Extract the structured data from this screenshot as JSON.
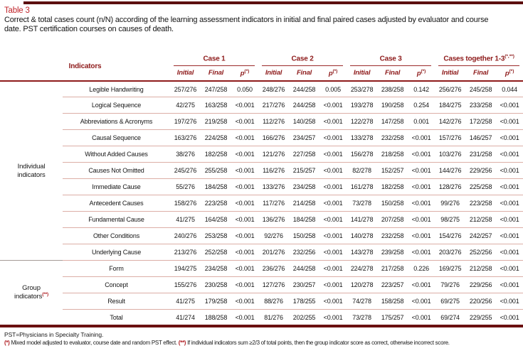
{
  "title": "Table 3",
  "subtitle": "Correct & total cases count (n/N) according of the learning assessment indicators in initial and final paired cases adjusted by evaluator and course date. PST certification courses on causes of death.",
  "colors": {
    "title_red": "#c0242a",
    "header_maroon": "#8e1b1b",
    "rule_dark_maroon": "#6b1010",
    "row_separator_pink": "#dcaea6",
    "group_boundary_gray": "#a59a96",
    "footnote_marker_red": "#b01e23"
  },
  "header": {
    "indicators_label": "Indicators",
    "groups": [
      {
        "label": "Case 1",
        "sup": ""
      },
      {
        "label": "Case 2",
        "sup": ""
      },
      {
        "label": "Case 3",
        "sup": ""
      },
      {
        "label": "Cases together 1-3",
        "sup": "(*,**)"
      }
    ],
    "subcols": [
      "Initial",
      "Final"
    ],
    "p_label": "p",
    "p_sup": "(*)"
  },
  "row_groups": [
    {
      "label": "Individual indicators",
      "sup": "",
      "rows": [
        {
          "name": "Legible Handwriting",
          "values": [
            "257/276",
            "247/258",
            "0.050",
            "248/276",
            "244/258",
            "0.005",
            "253/278",
            "238/258",
            "0.142",
            "256/276",
            "245/258",
            "0.044"
          ]
        },
        {
          "name": "Logical Sequence",
          "values": [
            "42/275",
            "163/258",
            "<0.001",
            "217/276",
            "244/258",
            "<0.001",
            "193/278",
            "190/258",
            "0.254",
            "184/275",
            "233/258",
            "<0.001"
          ]
        },
        {
          "name": "Abbreviations & Acronyms",
          "values": [
            "197/276",
            "219/258",
            "<0.001",
            "112/276",
            "140/258",
            "<0.001",
            "122/278",
            "147/258",
            "0.001",
            "142/276",
            "172/258",
            "<0.001"
          ]
        },
        {
          "name": "Causal Sequence",
          "values": [
            "163/276",
            "224/258",
            "<0.001",
            "166/276",
            "234/257",
            "<0.001",
            "133/278",
            "232/258",
            "<0.001",
            "157/276",
            "146/257",
            "<0.001"
          ]
        },
        {
          "name": "Without Added Causes",
          "values": [
            "38/276",
            "182/258",
            "<0.001",
            "121/276",
            "227/258",
            "<0.001",
            "156/278",
            "218/258",
            "<0.001",
            "103/276",
            "231/258",
            "<0.001"
          ]
        },
        {
          "name": "Causes Not Omitted",
          "values": [
            "245/276",
            "255/258",
            "<0.001",
            "116/276",
            "215/257",
            "<0.001",
            "82/278",
            "152/257",
            "<0.001",
            "144/276",
            "229/256",
            "<0.001"
          ]
        },
        {
          "name": "Immediate Cause",
          "values": [
            "55/276",
            "184/258",
            "<0.001",
            "133/276",
            "234/258",
            "<0.001",
            "161/278",
            "182/258",
            "<0.001",
            "128/276",
            "225/258",
            "<0.001"
          ]
        },
        {
          "name": "Antecedent Causes",
          "values": [
            "158/276",
            "223/258",
            "<0.001",
            "117/276",
            "214/258",
            "<0.001",
            "73/278",
            "150/258",
            "<0.001",
            "99/276",
            "223/258",
            "<0.001"
          ]
        },
        {
          "name": "Fundamental Cause",
          "values": [
            "41/275",
            "164/258",
            "<0.001",
            "136/276",
            "184/258",
            "<0.001",
            "141/278",
            "207/258",
            "<0.001",
            "98/275",
            "212/258",
            "<0.001"
          ]
        },
        {
          "name": "Other Conditions",
          "values": [
            "240/276",
            "253/258",
            "<0.001",
            "92/276",
            "150/258",
            "<0.001",
            "140/278",
            "232/258",
            "<0.001",
            "154/276",
            "242/257",
            "<0.001"
          ]
        },
        {
          "name": "Underlying Cause",
          "values": [
            "213/276",
            "252/258",
            "<0.001",
            "201/276",
            "232/256",
            "<0.001",
            "143/278",
            "239/258",
            "<0.001",
            "203/276",
            "252/256",
            "<0.001"
          ]
        }
      ]
    },
    {
      "label": "Group indicators",
      "sup": "(**)",
      "rows": [
        {
          "name": "Form",
          "values": [
            "194/275",
            "234/258",
            "<0.001",
            "236/276",
            "244/258",
            "<0.001",
            "224/278",
            "217/258",
            "0.226",
            "169/275",
            "212/258",
            "<0.001"
          ]
        },
        {
          "name": "Concept",
          "values": [
            "155/276",
            "230/258",
            "<0.001",
            "127/276",
            "230/257",
            "<0.001",
            "120/278",
            "223/257",
            "<0.001",
            "79/276",
            "229/256",
            "<0.001"
          ]
        },
        {
          "name": "Result",
          "values": [
            "41/275",
            "179/258",
            "<0.001",
            "88/276",
            "178/255",
            "<0.001",
            "74/278",
            "158/258",
            "<0.001",
            "69/275",
            "220/256",
            "<0.001"
          ]
        },
        {
          "name": "Total",
          "values": [
            "41/274",
            "188/258",
            "<0.001",
            "81/276",
            "202/255",
            "<0.001",
            "73/278",
            "175/257",
            "<0.001",
            "69/274",
            "229/255",
            "<0.001"
          ]
        }
      ]
    }
  ],
  "footer": {
    "line1": "PST=Physicians in Specialty Training.",
    "note1_marker": "(*)",
    "note1_text": " Mixed model adjusted to evaluator, course date and random PST effect. ",
    "note2_marker": "(**)",
    "note2_text": " If individual indicators sum ≥2/3 of total points, then the group indicator score as correct, otherwise incorrect score."
  }
}
